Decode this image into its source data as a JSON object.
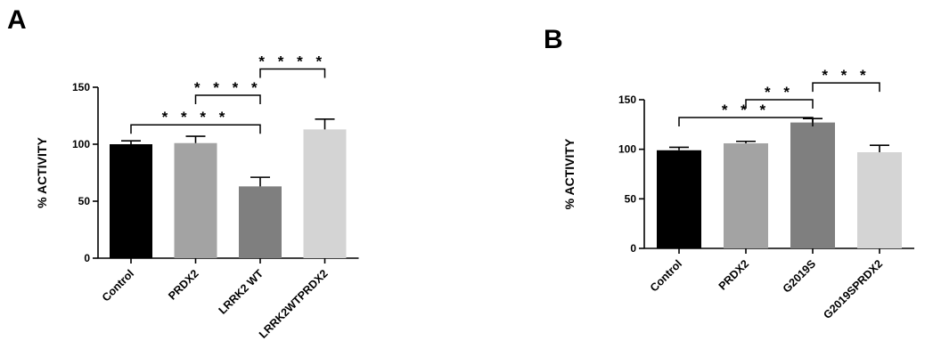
{
  "panels": [
    {
      "letter": "A"
    },
    {
      "letter": "B"
    }
  ],
  "chart_data": [
    {
      "type": "bar",
      "panel": "A",
      "title": "",
      "xlabel": "",
      "ylabel": "% ACTIVITY",
      "ylim": [
        0,
        150
      ],
      "yticks": [
        0,
        50,
        100,
        150
      ],
      "categories": [
        "Control",
        "PRDX2",
        "LRRK2 WT",
        "LRRK2WTPRDX2"
      ],
      "values": [
        100,
        101,
        63,
        113
      ],
      "errors": [
        3,
        6,
        8,
        9
      ],
      "colors": [
        "#000000",
        "#a3a3a3",
        "#7f7f7f",
        "#d4d4d4"
      ],
      "significance": [
        {
          "from": 0,
          "to": 2,
          "label": "* * * *"
        },
        {
          "from": 1,
          "to": 2,
          "label": "* * * *"
        },
        {
          "from": 2,
          "to": 3,
          "label": "* * * *"
        }
      ]
    },
    {
      "type": "bar",
      "panel": "B",
      "title": "",
      "xlabel": "",
      "ylabel": "% ACTIVITY",
      "ylim": [
        0,
        150
      ],
      "yticks": [
        0,
        50,
        100,
        150
      ],
      "categories": [
        "Control",
        "PRDX2",
        "G2019S",
        "G2019SPRDX2"
      ],
      "values": [
        99,
        106,
        127,
        97
      ],
      "errors": [
        3,
        2,
        4,
        7
      ],
      "colors": [
        "#000000",
        "#a3a3a3",
        "#7f7f7f",
        "#d4d4d4"
      ],
      "significance": [
        {
          "from": 0,
          "to": 2,
          "label": "* * *"
        },
        {
          "from": 1,
          "to": 2,
          "label": "* *"
        },
        {
          "from": 2,
          "to": 3,
          "label": "* * *"
        }
      ]
    }
  ]
}
